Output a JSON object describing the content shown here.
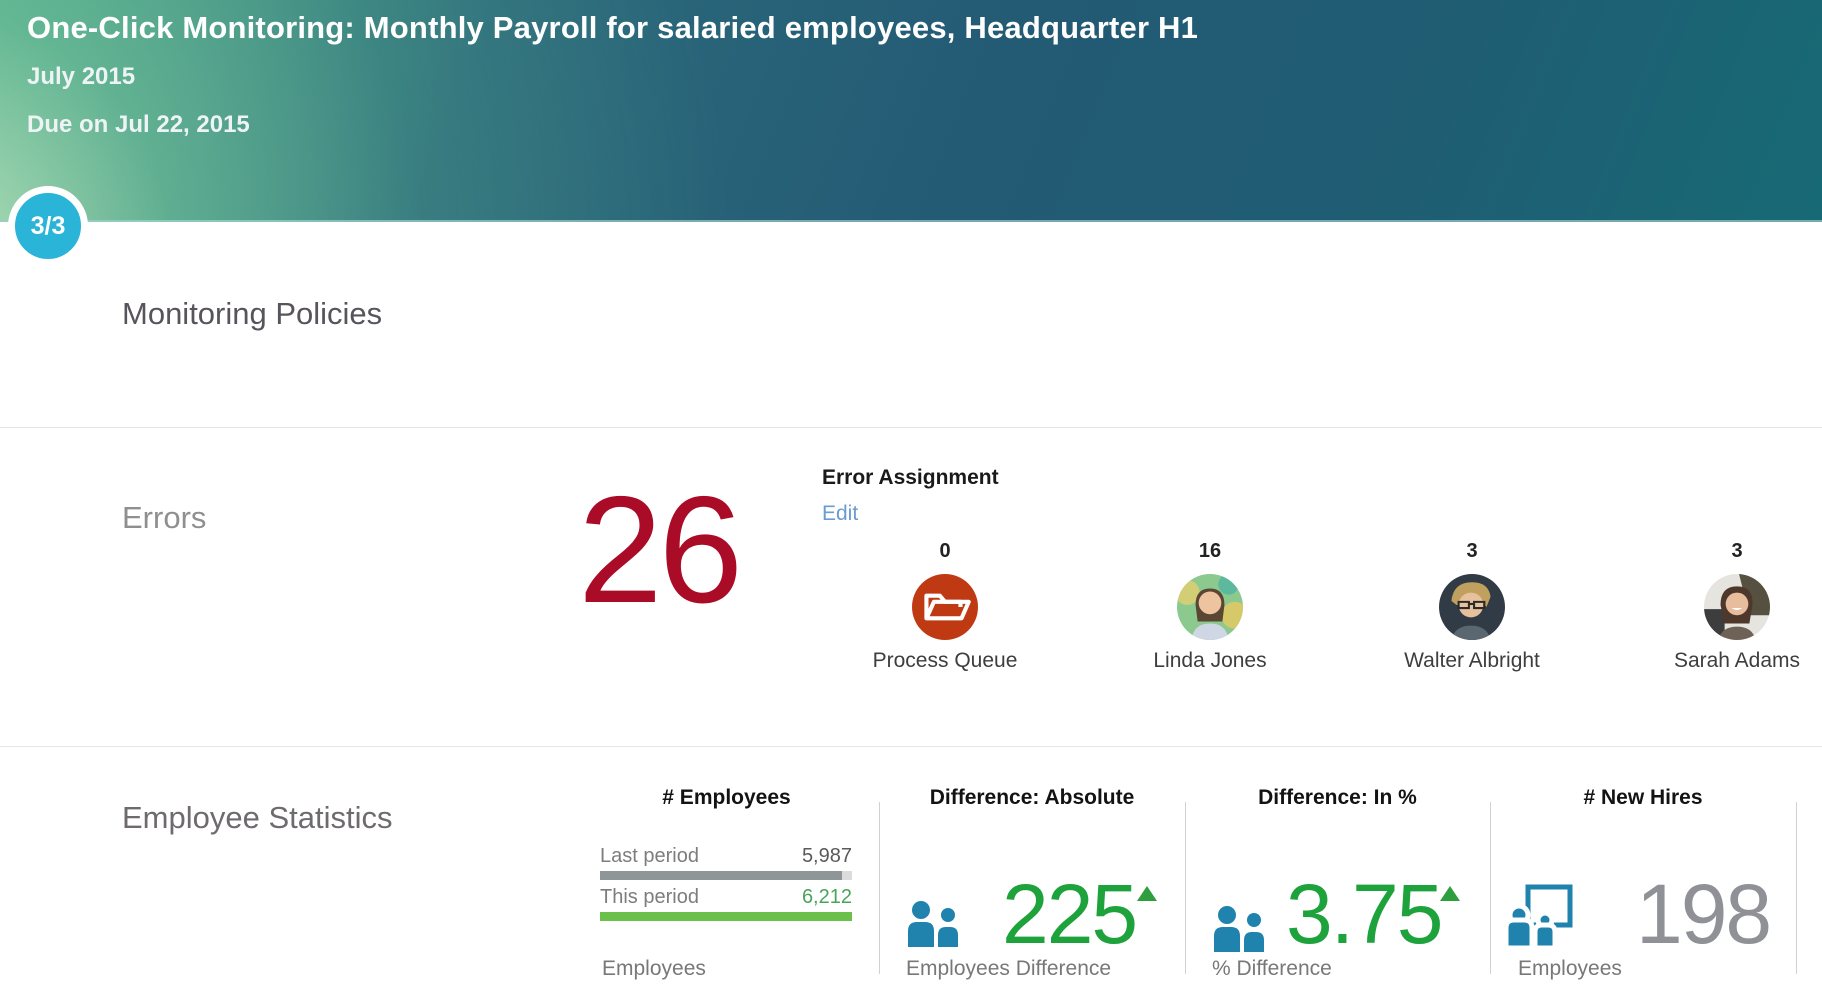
{
  "colors": {
    "header_gradient_dark": "#235a74",
    "header_gradient_green": "#47a189",
    "step_badge_bg": "#29b4d8",
    "error_count_red": "#aa0b26",
    "edit_link_blue": "#6b9bd2",
    "positive_green": "#1ea23c",
    "kpi_icon_blue": "#1f83ae",
    "neutral_number_gray": "#8f9196",
    "bar_gray": "#8e9698",
    "bar_green": "#6bc04b",
    "process_queue_tile": "#bf3a12"
  },
  "header": {
    "title": "One-Click Monitoring: Monthly Payroll for salaried employees, Headquarter H1",
    "period": "July 2015",
    "due": "Due on Jul 22, 2015",
    "step_badge": "3/3"
  },
  "monitoring": {
    "section_title": "Monitoring Policies"
  },
  "errors": {
    "label": "Errors",
    "count": "26",
    "assignment_title": "Error Assignment",
    "edit_label": "Edit",
    "assignees": [
      {
        "count": "0",
        "name": "Process Queue",
        "kind": "process-queue",
        "icon": "open-folder-icon"
      },
      {
        "count": "16",
        "name": "Linda Jones",
        "kind": "person-photo"
      },
      {
        "count": "3",
        "name": "Walter Albright",
        "kind": "person-photo"
      },
      {
        "count": "3",
        "name": "Sarah Adams",
        "kind": "person-photo"
      }
    ]
  },
  "employee_statistics": {
    "label": "Employee Statistics",
    "chart_data": {
      "type": "bar",
      "title": "# Employees",
      "categories": [
        "Last period",
        "This period"
      ],
      "values": [
        5987,
        6212
      ],
      "value_labels": [
        "5,987",
        "6,212"
      ],
      "bar_pct": [
        96,
        100
      ]
    },
    "columns": [
      {
        "header": "# Employees",
        "rows": [
          {
            "label": "Last period",
            "value": "5,987",
            "bar_pct": 96
          },
          {
            "label": "This period",
            "value": "6,212",
            "bar_pct": 100
          }
        ],
        "footer": "Employees"
      },
      {
        "header": "Difference: Absolute",
        "value": "225",
        "trend": "up",
        "icon": "employees-pair-icon",
        "footer": "Employees Difference"
      },
      {
        "header": "Difference: In %",
        "value": "3.75",
        "trend": "up",
        "icon": "employees-pair-icon",
        "footer": "% Difference"
      },
      {
        "header": "# New Hires",
        "value": "198",
        "trend": "none",
        "icon": "new-hires-badge-icon",
        "footer": "Employees"
      }
    ]
  }
}
